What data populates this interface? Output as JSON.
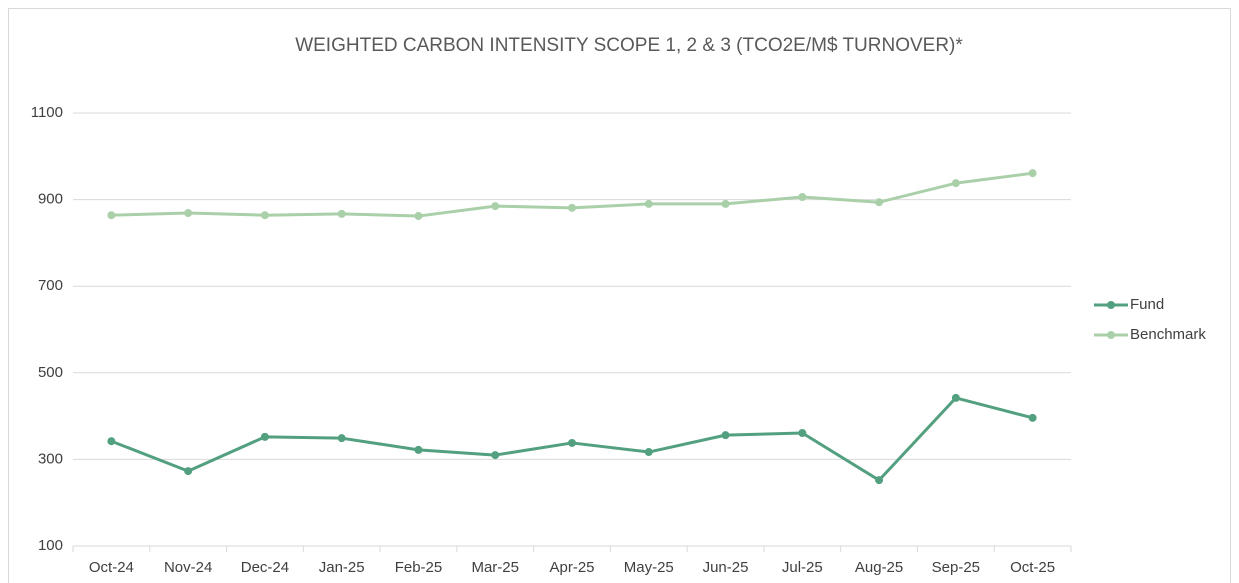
{
  "chart_data": {
    "type": "line",
    "title": "WEIGHTED CARBON INTENSITY SCOPE 1, 2 & 3 (TCO2E/M$ TURNOVER)*",
    "categories": [
      "Oct-24",
      "Nov-24",
      "Dec-24",
      "Jan-25",
      "Feb-25",
      "Mar-25",
      "Apr-25",
      "May-25",
      "Jun-25",
      "Jul-25",
      "Aug-25",
      "Sep-25",
      "Oct-25"
    ],
    "series": [
      {
        "name": "Fund",
        "color": "#52a07f",
        "values": [
          342,
          273,
          352,
          349,
          322,
          310,
          338,
          317,
          356,
          361,
          252,
          442,
          396
        ]
      },
      {
        "name": "Benchmark",
        "color": "#a9d0a9",
        "values": [
          864,
          869,
          864,
          867,
          862,
          885,
          881,
          890,
          890,
          906,
          894,
          938,
          961
        ]
      }
    ],
    "ylim": [
      100,
      1100
    ],
    "yticks": [
      100,
      300,
      500,
      700,
      900,
      1100
    ],
    "grid": true,
    "legend": "right"
  }
}
